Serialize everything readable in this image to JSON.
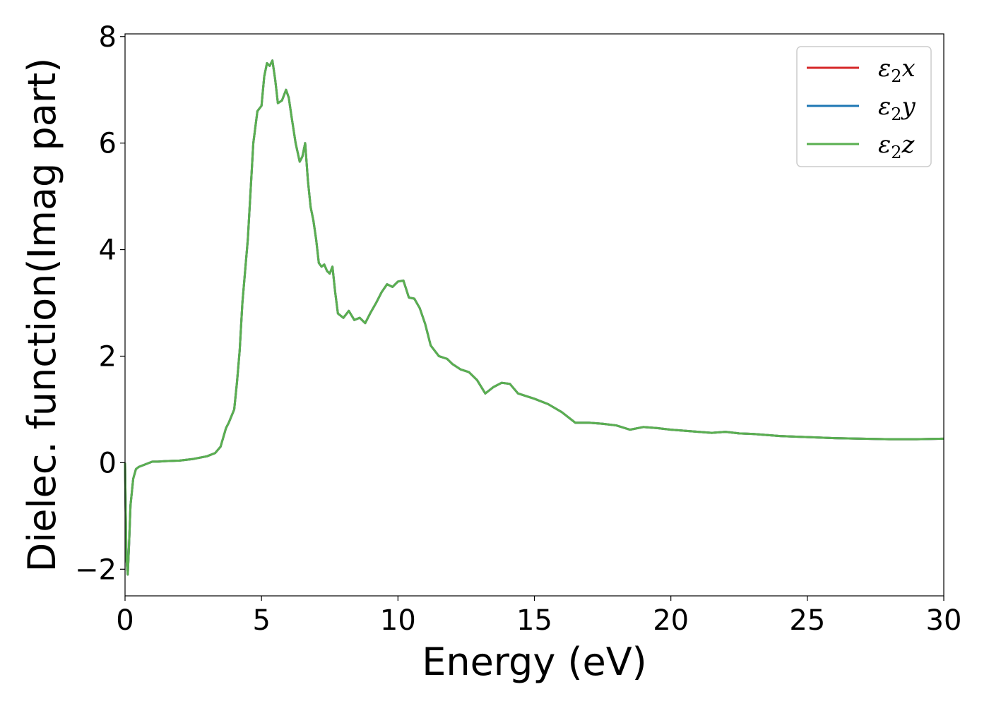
{
  "chart_data": {
    "type": "line",
    "title": "",
    "xlabel": "Energy (eV)",
    "ylabel": "Dielec. function(Imag part)",
    "xlim": [
      0,
      30
    ],
    "ylim": [
      -2.5,
      8.05
    ],
    "xticks": [
      0,
      5,
      10,
      15,
      20,
      25,
      30
    ],
    "yticks": [
      -2,
      0,
      2,
      4,
      6,
      8
    ],
    "xtick_labels": [
      "0",
      "5",
      "10",
      "15",
      "20",
      "25",
      "30"
    ],
    "ytick_labels": [
      "−2",
      "0",
      "2",
      "4",
      "6",
      "8"
    ],
    "grid": false,
    "legend_position": "top-right",
    "series": [
      {
        "name": "ε",
        "sub": "2",
        "axis": "x",
        "color": "#d62728"
      },
      {
        "name": "ε",
        "sub": "2",
        "axis": "y",
        "color": "#1f77b4"
      },
      {
        "name": "ε",
        "sub": "2",
        "axis": "z",
        "color": "#5aaf50"
      }
    ],
    "x": [
      0,
      0.05,
      0.1,
      0.15,
      0.2,
      0.3,
      0.4,
      0.5,
      0.7,
      1.0,
      1.2,
      1.5,
      2.0,
      2.5,
      3.0,
      3.3,
      3.5,
      3.7,
      3.8,
      4.0,
      4.1,
      4.2,
      4.3,
      4.5,
      4.7,
      4.85,
      5.0,
      5.1,
      5.2,
      5.3,
      5.4,
      5.5,
      5.6,
      5.75,
      5.9,
      6.0,
      6.1,
      6.25,
      6.4,
      6.5,
      6.6,
      6.7,
      6.8,
      6.9,
      7.0,
      7.1,
      7.2,
      7.3,
      7.4,
      7.5,
      7.6,
      7.7,
      7.8,
      8.0,
      8.2,
      8.4,
      8.6,
      8.8,
      9.0,
      9.2,
      9.4,
      9.6,
      9.8,
      10.0,
      10.2,
      10.4,
      10.6,
      10.8,
      11.0,
      11.2,
      11.5,
      11.8,
      12.0,
      12.3,
      12.6,
      12.9,
      13.2,
      13.5,
      13.8,
      14.1,
      14.4,
      14.7,
      15.0,
      15.5,
      16.0,
      16.5,
      17.0,
      17.5,
      18.0,
      18.5,
      19.0,
      19.5,
      20.0,
      20.5,
      21.0,
      21.5,
      22.0,
      22.5,
      23.0,
      23.5,
      24.0,
      24.5,
      25.0,
      26.0,
      27.0,
      28.0,
      29.0,
      30.0
    ],
    "values": [
      0.0,
      -1.8,
      -2.1,
      -1.5,
      -0.8,
      -0.3,
      -0.12,
      -0.08,
      -0.04,
      0.02,
      0.02,
      0.03,
      0.04,
      0.07,
      0.12,
      0.18,
      0.3,
      0.65,
      0.75,
      1.0,
      1.5,
      2.1,
      3.0,
      4.2,
      6.0,
      6.6,
      6.7,
      7.25,
      7.5,
      7.45,
      7.55,
      7.2,
      6.75,
      6.8,
      7.0,
      6.85,
      6.5,
      6.0,
      5.65,
      5.75,
      6.0,
      5.3,
      4.8,
      4.55,
      4.2,
      3.75,
      3.68,
      3.72,
      3.6,
      3.55,
      3.68,
      3.2,
      2.8,
      2.72,
      2.85,
      2.68,
      2.72,
      2.62,
      2.82,
      3.0,
      3.2,
      3.35,
      3.3,
      3.4,
      3.42,
      3.1,
      3.08,
      2.9,
      2.6,
      2.2,
      2.0,
      1.95,
      1.85,
      1.75,
      1.7,
      1.55,
      1.3,
      1.42,
      1.5,
      1.48,
      1.3,
      1.25,
      1.2,
      1.1,
      0.95,
      0.75,
      0.75,
      0.73,
      0.7,
      0.62,
      0.67,
      0.65,
      0.62,
      0.6,
      0.58,
      0.56,
      0.58,
      0.55,
      0.54,
      0.52,
      0.5,
      0.49,
      0.48,
      0.46,
      0.45,
      0.44,
      0.44,
      0.45
    ]
  }
}
